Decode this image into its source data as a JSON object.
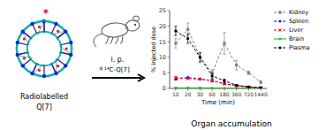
{
  "chart_data": {
    "type": "line",
    "title": "Organ accumulation",
    "x_label": "Time (min)",
    "y_label": "% injected dose",
    "categories": [
      "10",
      "20",
      "30",
      "60",
      "180",
      "360",
      "720",
      "1440"
    ],
    "ylim": [
      0,
      25
    ],
    "yticks": [
      0,
      5,
      10,
      15,
      20,
      25
    ],
    "grid": false,
    "legend": "right",
    "annotations": [
      "*",
      "Radiolabelled",
      "Q[7]",
      "i. p.",
      "*",
      "¹⁴C-Q[7]"
    ],
    "series": [
      {
        "name": "Kidney",
        "color": "#808080",
        "marker": "square",
        "line_style": "dashed",
        "values": [
          14.5,
          19.0,
          10.0,
          5.0,
          14.5,
          7.5,
          5.0,
          2.0
        ],
        "errors": [
          1.5,
          2.0,
          1.5,
          1.0,
          3.5,
          1.5,
          0.5,
          0.5
        ]
      },
      {
        "name": "Spleen",
        "color": "#0000ff",
        "marker": "triangle",
        "line_style": "dashed",
        "values": [
          3.0,
          3.5,
          3.0,
          2.5,
          1.5,
          1.0,
          0.5,
          0.3
        ],
        "errors": [
          0.3,
          0.4,
          0.3,
          0.4,
          0.3,
          0.2,
          0.1,
          0.1
        ]
      },
      {
        "name": "Liver",
        "color": "#ff0000",
        "marker": "x",
        "line_style": "dashed",
        "values": [
          3.5,
          3.2,
          3.0,
          2.5,
          1.5,
          0.8,
          0.5,
          0.3
        ],
        "errors": [
          0.3,
          0.3,
          0.3,
          0.3,
          0.2,
          0.1,
          0.1,
          0.1
        ]
      },
      {
        "name": "Brain",
        "color": "#00bb00",
        "marker": "plus",
        "line_style": "solid",
        "values": [
          0.2,
          0.2,
          0.2,
          0.15,
          0.1,
          0.1,
          0.1,
          0.05
        ],
        "errors": [
          0.05,
          0.05,
          0.05,
          0.03,
          0.02,
          0.02,
          0.02,
          0.01
        ]
      },
      {
        "name": "Plasma",
        "color": "#000000",
        "marker": "circle",
        "line_style": "dashed",
        "values": [
          18.5,
          16.0,
          10.0,
          4.0,
          2.5,
          1.0,
          0.5,
          0.2
        ],
        "errors": [
          1.5,
          1.5,
          1.5,
          0.8,
          0.5,
          0.2,
          0.1,
          0.1
        ]
      }
    ]
  }
}
